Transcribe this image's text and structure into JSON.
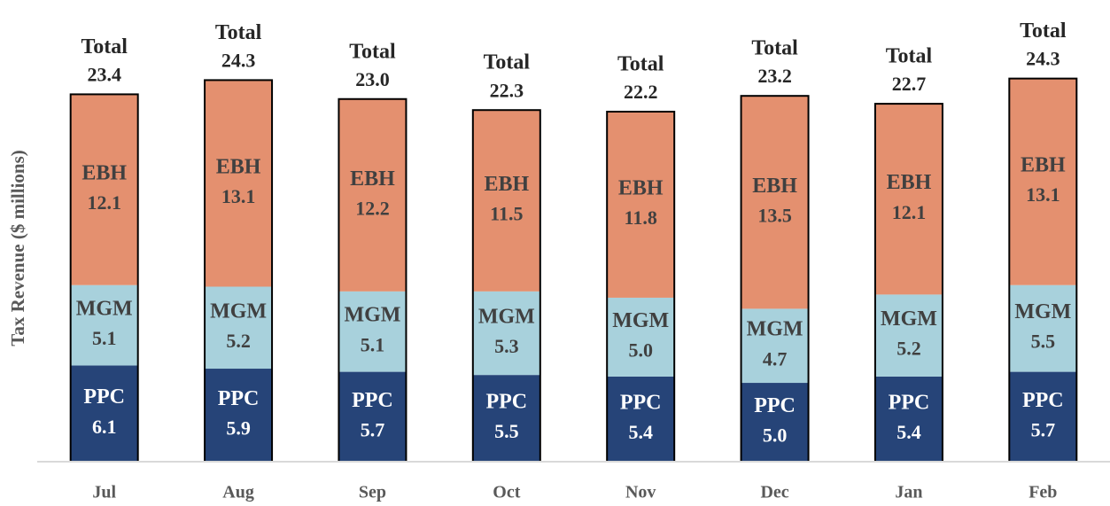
{
  "chart_data": {
    "type": "stacked_bar",
    "y_label": "Tax Revenue ($ millions)",
    "categories": [
      "Jul",
      "Aug",
      "Sep",
      "Oct",
      "Nov",
      "Dec",
      "Jan",
      "Feb"
    ],
    "series": [
      {
        "name": "PPC",
        "color": "#264478",
        "label_color": "#ffffff",
        "values": [
          6.1,
          5.9,
          5.7,
          5.5,
          5.4,
          5.0,
          5.4,
          5.7
        ],
        "value_labels": [
          "6.1",
          "5.9",
          "5.7",
          "5.5",
          "5.4",
          "5.0",
          "5.4",
          "5.7"
        ]
      },
      {
        "name": "MGM",
        "color": "#a8d1dc",
        "label_color": "#404040",
        "values": [
          5.1,
          5.2,
          5.1,
          5.3,
          5.0,
          4.7,
          5.2,
          5.5
        ],
        "value_labels": [
          "5.1",
          "5.2",
          "5.1",
          "5.3",
          "5.0",
          "4.7",
          "5.2",
          "5.5"
        ]
      },
      {
        "name": "EBH",
        "color": "#e4906f",
        "label_color": "#404040",
        "values": [
          12.1,
          13.1,
          12.2,
          11.5,
          11.8,
          13.5,
          12.1,
          13.1
        ],
        "value_labels": [
          "12.1",
          "13.1",
          "12.2",
          "11.5",
          "11.8",
          "13.5",
          "12.1",
          "13.1"
        ]
      }
    ],
    "total_name": "Total",
    "totals": [
      23.4,
      24.3,
      23.0,
      22.3,
      22.2,
      23.2,
      22.7,
      24.3
    ],
    "total_labels": [
      "23.4",
      "24.3",
      "23.0",
      "22.3",
      "22.2",
      "23.2",
      "22.7",
      "24.3"
    ],
    "ylim": [
      0,
      29
    ]
  }
}
